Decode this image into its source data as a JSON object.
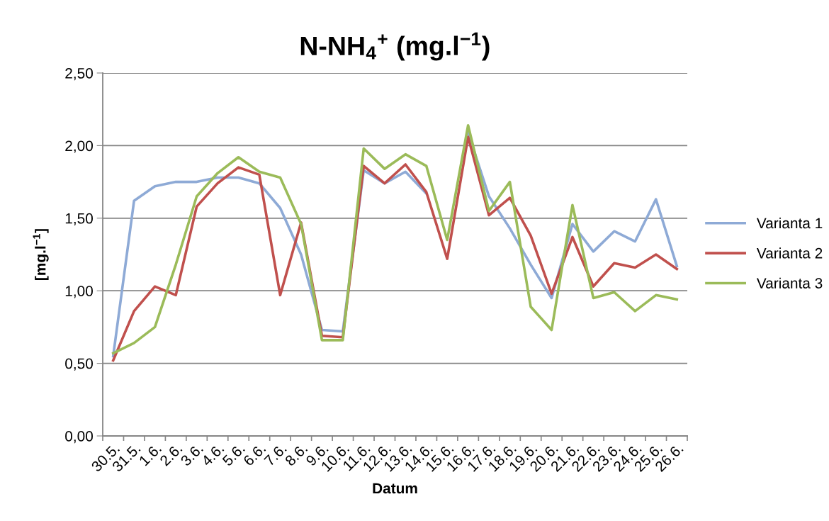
{
  "chart_data": {
    "type": "line",
    "title": "N-NH$_{4}$$^{+}$ (mg.l$^{−1}$)",
    "xlabel": "Datum",
    "ylabel": "[mg.l$^{−1}$]",
    "categories": [
      "30.5.",
      "31.5.",
      "1.6.",
      "2.6.",
      "3.6.",
      "4.6.",
      "5.6.",
      "6.6.",
      "7.6.",
      "8.6.",
      "9.6.",
      "10.6.",
      "11.6.",
      "12.6.",
      "13.6.",
      "14.6.",
      "15.6.",
      "16.6.",
      "17.6.",
      "18.6.",
      "19.6.",
      "20.6.",
      "21.6.",
      "22.6.",
      "23.6.",
      "24.6.",
      "25.6.",
      "26.6."
    ],
    "series": [
      {
        "name": "Varianta 1",
        "color": "#8eaad6",
        "values": [
          0.55,
          1.62,
          1.72,
          1.75,
          1.75,
          1.78,
          1.78,
          1.74,
          1.57,
          1.25,
          0.73,
          0.72,
          1.83,
          1.74,
          1.82,
          1.67,
          null,
          2.09,
          1.65,
          1.43,
          1.18,
          0.95,
          1.46,
          1.27,
          1.41,
          1.34,
          1.63,
          1.17
        ]
      },
      {
        "name": "Varianta 2",
        "color": "#c0504d",
        "values": [
          0.52,
          0.86,
          1.03,
          0.97,
          1.58,
          1.74,
          1.85,
          1.8,
          0.97,
          1.47,
          0.69,
          0.68,
          1.86,
          1.74,
          1.87,
          1.68,
          1.22,
          2.06,
          1.52,
          1.64,
          1.38,
          0.98,
          1.37,
          1.03,
          1.19,
          1.16,
          1.25,
          1.15
        ]
      },
      {
        "name": "Varianta 3",
        "color": "#9bbb59",
        "values": [
          0.57,
          0.64,
          0.75,
          1.18,
          1.65,
          1.81,
          1.92,
          1.82,
          1.78,
          1.46,
          0.66,
          0.66,
          1.98,
          1.84,
          1.94,
          1.86,
          1.35,
          2.14,
          1.55,
          1.75,
          0.89,
          0.73,
          1.59,
          0.95,
          0.99,
          0.86,
          0.97,
          0.94
        ]
      }
    ],
    "ylim": [
      0,
      2.5
    ],
    "yticks": [
      {
        "value": 0,
        "label": "0,00"
      },
      {
        "value": 0.5,
        "label": "0,50"
      },
      {
        "value": 1,
        "label": "1,00"
      },
      {
        "value": 1.5,
        "label": "1,50"
      },
      {
        "value": 2,
        "label": "2,00"
      },
      {
        "value": 2.5,
        "label": "2,50"
      }
    ],
    "grid": "y",
    "legend": "right",
    "marker": "none",
    "line_style": "solid"
  }
}
